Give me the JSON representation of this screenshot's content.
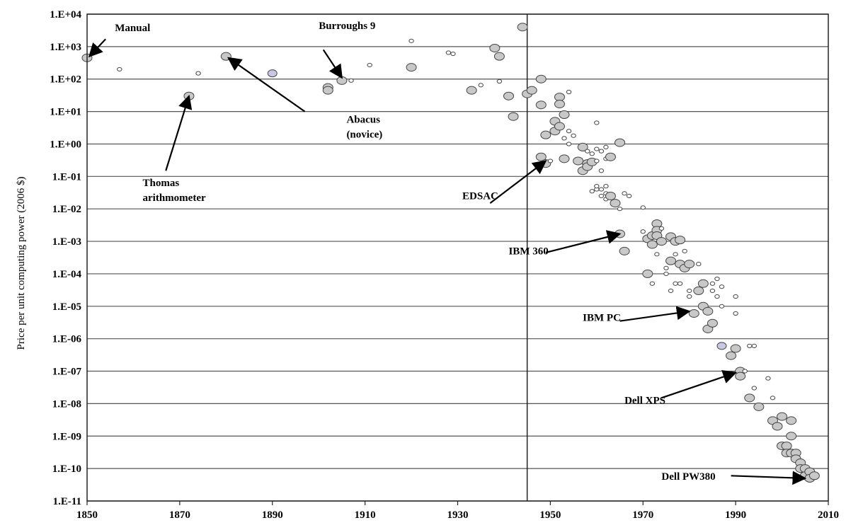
{
  "chart_data": {
    "type": "scatter",
    "title": "",
    "xlabel": "",
    "ylabel": "Price per unit computing power (2006 $)",
    "y_scale": "log",
    "xlim": [
      1850,
      2010
    ],
    "ylim": [
      1e-11,
      10000.0
    ],
    "x_ticks": [
      1850,
      1870,
      1890,
      1910,
      1930,
      1950,
      1970,
      1990,
      2010
    ],
    "y_ticks": [
      {
        "value": 10000.0,
        "label": "1.E+04"
      },
      {
        "value": 1000.0,
        "label": "1.E+03"
      },
      {
        "value": 100.0,
        "label": "1.E+02"
      },
      {
        "value": 10.0,
        "label": "1.E+01"
      },
      {
        "value": 1.0,
        "label": "1.E+00"
      },
      {
        "value": 0.1,
        "label": "1.E-01"
      },
      {
        "value": 0.01,
        "label": "1.E-02"
      },
      {
        "value": 0.001,
        "label": "1.E-03"
      },
      {
        "value": 0.0001,
        "label": "1.E-04"
      },
      {
        "value": 1e-05,
        "label": "1.E-05"
      },
      {
        "value": 1e-06,
        "label": "1.E-06"
      },
      {
        "value": 1e-07,
        "label": "1.E-07"
      },
      {
        "value": 1e-08,
        "label": "1.E-08"
      },
      {
        "value": 1e-09,
        "label": "1.E-09"
      },
      {
        "value": 1e-10,
        "label": "1.E-10"
      },
      {
        "value": 1e-11,
        "label": "1.E-11"
      }
    ],
    "grid": {
      "horizontal": true,
      "vertical": false
    },
    "reference_line_x": 1945,
    "colors": {
      "large_fill": "#c8c8c8",
      "small_fill": "#ffffff",
      "highlight_fill": "#c8c8e6",
      "stroke": "#444444"
    },
    "points": [
      {
        "x": 1850,
        "y": 450,
        "s": "L"
      },
      {
        "x": 1857,
        "y": 200,
        "s": "S"
      },
      {
        "x": 1872,
        "y": 30,
        "s": "L"
      },
      {
        "x": 1874,
        "y": 150,
        "s": "S"
      },
      {
        "x": 1880,
        "y": 500,
        "s": "L"
      },
      {
        "x": 1890,
        "y": 150,
        "s": "H"
      },
      {
        "x": 1902,
        "y": 55,
        "s": "L"
      },
      {
        "x": 1902,
        "y": 45,
        "s": "L"
      },
      {
        "x": 1905,
        "y": 90,
        "s": "L"
      },
      {
        "x": 1907,
        "y": 90,
        "s": "S"
      },
      {
        "x": 1911,
        "y": 270,
        "s": "S"
      },
      {
        "x": 1920,
        "y": 1500,
        "s": "S"
      },
      {
        "x": 1920,
        "y": 230,
        "s": "L"
      },
      {
        "x": 1928,
        "y": 650,
        "s": "S"
      },
      {
        "x": 1929,
        "y": 600,
        "s": "S"
      },
      {
        "x": 1933,
        "y": 45,
        "s": "L"
      },
      {
        "x": 1935,
        "y": 65,
        "s": "S"
      },
      {
        "x": 1938,
        "y": 900,
        "s": "L"
      },
      {
        "x": 1939,
        "y": 500,
        "s": "L"
      },
      {
        "x": 1939,
        "y": 85,
        "s": "S"
      },
      {
        "x": 1941,
        "y": 30,
        "s": "L"
      },
      {
        "x": 1942,
        "y": 7,
        "s": "L"
      },
      {
        "x": 1944,
        "y": 4000,
        "s": "L"
      },
      {
        "x": 1945,
        "y": 35,
        "s": "L"
      },
      {
        "x": 1946,
        "y": 45,
        "s": "L"
      },
      {
        "x": 1948,
        "y": 100,
        "s": "L"
      },
      {
        "x": 1948,
        "y": 16,
        "s": "L"
      },
      {
        "x": 1948,
        "y": 0.4,
        "s": "L"
      },
      {
        "x": 1949,
        "y": 0.25,
        "s": "L"
      },
      {
        "x": 1949,
        "y": 1.9,
        "s": "L"
      },
      {
        "x": 1950,
        "y": 0.3,
        "s": "S"
      },
      {
        "x": 1951,
        "y": 5,
        "s": "L"
      },
      {
        "x": 1951,
        "y": 2.5,
        "s": "L"
      },
      {
        "x": 1952,
        "y": 28,
        "s": "L"
      },
      {
        "x": 1952,
        "y": 17,
        "s": "L"
      },
      {
        "x": 1952,
        "y": 3.5,
        "s": "L"
      },
      {
        "x": 1953,
        "y": 8,
        "s": "L"
      },
      {
        "x": 1953,
        "y": 1.5,
        "s": "S"
      },
      {
        "x": 1953,
        "y": 0.35,
        "s": "L"
      },
      {
        "x": 1954,
        "y": 40,
        "s": "S"
      },
      {
        "x": 1954,
        "y": 2.5,
        "s": "S"
      },
      {
        "x": 1954,
        "y": 1,
        "s": "S"
      },
      {
        "x": 1955,
        "y": 1.8,
        "s": "S"
      },
      {
        "x": 1956,
        "y": 0.3,
        "s": "L"
      },
      {
        "x": 1957,
        "y": 0.8,
        "s": "L"
      },
      {
        "x": 1957,
        "y": 0.15,
        "s": "L"
      },
      {
        "x": 1958,
        "y": 0.6,
        "s": "S"
      },
      {
        "x": 1958,
        "y": 0.25,
        "s": "L"
      },
      {
        "x": 1958,
        "y": 0.2,
        "s": "L"
      },
      {
        "x": 1959,
        "y": 0.5,
        "s": "S"
      },
      {
        "x": 1959,
        "y": 0.28,
        "s": "L"
      },
      {
        "x": 1959,
        "y": 0.035,
        "s": "S"
      },
      {
        "x": 1960,
        "y": 4.5,
        "s": "S"
      },
      {
        "x": 1960,
        "y": 0.7,
        "s": "S"
      },
      {
        "x": 1960,
        "y": 0.3,
        "s": "S"
      },
      {
        "x": 1960,
        "y": 0.04,
        "s": "S"
      },
      {
        "x": 1960,
        "y": 0.05,
        "s": "S"
      },
      {
        "x": 1961,
        "y": 0.6,
        "s": "S"
      },
      {
        "x": 1961,
        "y": 0.15,
        "s": "S"
      },
      {
        "x": 1961,
        "y": 0.04,
        "s": "S"
      },
      {
        "x": 1961,
        "y": 0.025,
        "s": "S"
      },
      {
        "x": 1962,
        "y": 0.8,
        "s": "S"
      },
      {
        "x": 1962,
        "y": 0.35,
        "s": "S"
      },
      {
        "x": 1962,
        "y": 0.05,
        "s": "S"
      },
      {
        "x": 1962,
        "y": 0.03,
        "s": "S"
      },
      {
        "x": 1962,
        "y": 0.02,
        "s": "S"
      },
      {
        "x": 1963,
        "y": 0.4,
        "s": "L"
      },
      {
        "x": 1963,
        "y": 0.025,
        "s": "L"
      },
      {
        "x": 1964,
        "y": 0.015,
        "s": "L"
      },
      {
        "x": 1965,
        "y": 1.1,
        "s": "L"
      },
      {
        "x": 1965,
        "y": 0.0017,
        "s": "L"
      },
      {
        "x": 1965,
        "y": 0.01,
        "s": "S"
      },
      {
        "x": 1966,
        "y": 0.03,
        "s": "S"
      },
      {
        "x": 1966,
        "y": 0.0005,
        "s": "L"
      },
      {
        "x": 1967,
        "y": 0.025,
        "s": "S"
      },
      {
        "x": 1970,
        "y": 0.011,
        "s": "S"
      },
      {
        "x": 1970,
        "y": 0.002,
        "s": "S"
      },
      {
        "x": 1971,
        "y": 0.0012,
        "s": "L"
      },
      {
        "x": 1971,
        "y": 0.0001,
        "s": "L"
      },
      {
        "x": 1972,
        "y": 0.0015,
        "s": "L"
      },
      {
        "x": 1972,
        "y": 0.0008,
        "s": "L"
      },
      {
        "x": 1972,
        "y": 5e-05,
        "s": "S"
      },
      {
        "x": 1973,
        "y": 0.0035,
        "s": "L"
      },
      {
        "x": 1973,
        "y": 0.0022,
        "s": "L"
      },
      {
        "x": 1973,
        "y": 0.0015,
        "s": "L"
      },
      {
        "x": 1973,
        "y": 0.0004,
        "s": "S"
      },
      {
        "x": 1974,
        "y": 0.0025,
        "s": "S"
      },
      {
        "x": 1974,
        "y": 0.001,
        "s": "L"
      },
      {
        "x": 1975,
        "y": 0.00015,
        "s": "S"
      },
      {
        "x": 1975,
        "y": 0.0001,
        "s": "S"
      },
      {
        "x": 1976,
        "y": 0.0014,
        "s": "L"
      },
      {
        "x": 1976,
        "y": 0.00025,
        "s": "L"
      },
      {
        "x": 1976,
        "y": 3e-05,
        "s": "S"
      },
      {
        "x": 1977,
        "y": 0.001,
        "s": "L"
      },
      {
        "x": 1977,
        "y": 0.0004,
        "s": "S"
      },
      {
        "x": 1977,
        "y": 5e-05,
        "s": "S"
      },
      {
        "x": 1978,
        "y": 0.0011,
        "s": "L"
      },
      {
        "x": 1978,
        "y": 0.0002,
        "s": "L"
      },
      {
        "x": 1978,
        "y": 5e-05,
        "s": "S"
      },
      {
        "x": 1979,
        "y": 0.0005,
        "s": "S"
      },
      {
        "x": 1979,
        "y": 0.00015,
        "s": "L"
      },
      {
        "x": 1980,
        "y": 0.0002,
        "s": "L"
      },
      {
        "x": 1980,
        "y": 3e-05,
        "s": "S"
      },
      {
        "x": 1980,
        "y": 2e-05,
        "s": "S"
      },
      {
        "x": 1981,
        "y": 6e-06,
        "s": "L"
      },
      {
        "x": 1982,
        "y": 0.0002,
        "s": "S"
      },
      {
        "x": 1982,
        "y": 3e-05,
        "s": "L"
      },
      {
        "x": 1983,
        "y": 5e-05,
        "s": "L"
      },
      {
        "x": 1983,
        "y": 1e-05,
        "s": "L"
      },
      {
        "x": 1984,
        "y": 7e-06,
        "s": "L"
      },
      {
        "x": 1984,
        "y": 2e-06,
        "s": "L"
      },
      {
        "x": 1985,
        "y": 5e-05,
        "s": "S"
      },
      {
        "x": 1985,
        "y": 3e-05,
        "s": "S"
      },
      {
        "x": 1985,
        "y": 3e-06,
        "s": "L"
      },
      {
        "x": 1986,
        "y": 7e-05,
        "s": "S"
      },
      {
        "x": 1986,
        "y": 2e-05,
        "s": "S"
      },
      {
        "x": 1987,
        "y": 4e-05,
        "s": "S"
      },
      {
        "x": 1987,
        "y": 1e-05,
        "s": "S"
      },
      {
        "x": 1987,
        "y": 6e-07,
        "s": "H"
      },
      {
        "x": 1989,
        "y": 3e-07,
        "s": "L"
      },
      {
        "x": 1990,
        "y": 2e-05,
        "s": "S"
      },
      {
        "x": 1990,
        "y": 6e-06,
        "s": "S"
      },
      {
        "x": 1990,
        "y": 5e-07,
        "s": "L"
      },
      {
        "x": 1991,
        "y": 1e-07,
        "s": "L"
      },
      {
        "x": 1991,
        "y": 7e-08,
        "s": "L"
      },
      {
        "x": 1992,
        "y": 1e-07,
        "s": "S"
      },
      {
        "x": 1993,
        "y": 6e-07,
        "s": "S"
      },
      {
        "x": 1994,
        "y": 6e-07,
        "s": "S"
      },
      {
        "x": 1994,
        "y": 3e-08,
        "s": "S"
      },
      {
        "x": 1993,
        "y": 1.5e-08,
        "s": "L"
      },
      {
        "x": 1995,
        "y": 8e-09,
        "s": "L"
      },
      {
        "x": 1997,
        "y": 6e-08,
        "s": "S"
      },
      {
        "x": 1998,
        "y": 1.5e-08,
        "s": "S"
      },
      {
        "x": 1998,
        "y": 3e-09,
        "s": "L"
      },
      {
        "x": 1999,
        "y": 2e-09,
        "s": "L"
      },
      {
        "x": 2000,
        "y": 4e-09,
        "s": "L"
      },
      {
        "x": 2000,
        "y": 5e-10,
        "s": "L"
      },
      {
        "x": 2001,
        "y": 5e-10,
        "s": "L"
      },
      {
        "x": 2001,
        "y": 3e-10,
        "s": "L"
      },
      {
        "x": 2002,
        "y": 3e-09,
        "s": "L"
      },
      {
        "x": 2002,
        "y": 1e-09,
        "s": "L"
      },
      {
        "x": 2002,
        "y": 3e-10,
        "s": "L"
      },
      {
        "x": 2003,
        "y": 3e-10,
        "s": "L"
      },
      {
        "x": 2003,
        "y": 2e-10,
        "s": "L"
      },
      {
        "x": 2004,
        "y": 1.5e-10,
        "s": "L"
      },
      {
        "x": 2004,
        "y": 1e-10,
        "s": "L"
      },
      {
        "x": 2005,
        "y": 1e-10,
        "s": "L"
      },
      {
        "x": 2005,
        "y": 6e-11,
        "s": "L"
      },
      {
        "x": 2006,
        "y": 8e-11,
        "s": "L"
      },
      {
        "x": 2006,
        "y": 5e-11,
        "s": "L"
      },
      {
        "x": 2007,
        "y": 6e-11,
        "s": "L"
      }
    ],
    "annotations": [
      {
        "lines": [
          "Manual"
        ],
        "text_pos": [
          1856,
          3000
        ],
        "anchor": "start",
        "arrow_from": [
          1854,
          1700
        ],
        "arrow_to": [
          1850.5,
          500
        ]
      },
      {
        "lines": [
          "Burroughs 9"
        ],
        "text_pos": [
          1900,
          3500
        ],
        "anchor": "start",
        "arrow_from": [
          1901,
          800
        ],
        "arrow_to": [
          1905,
          110
        ]
      },
      {
        "lines": [
          "Abacus",
          "(novice)"
        ],
        "text_pos": [
          1906,
          4.5
        ],
        "anchor": "start",
        "arrow_from": [
          1897,
          10
        ],
        "arrow_to": [
          1880.5,
          450
        ]
      },
      {
        "lines": [
          "Thomas",
          "arithmometer"
        ],
        "text_pos": [
          1862,
          0.05
        ],
        "anchor": "start",
        "arrow_from": [
          1867,
          0.15
        ],
        "arrow_to": [
          1872,
          30
        ]
      },
      {
        "lines": [
          "EDSAC"
        ],
        "text_pos": [
          1931,
          0.02
        ],
        "anchor": "start",
        "arrow_from": [
          1937,
          0.015
        ],
        "arrow_to": [
          1949,
          0.3
        ]
      },
      {
        "lines": [
          "IBM 360"
        ],
        "text_pos": [
          1941,
          0.0004
        ],
        "anchor": "start",
        "arrow_from": [
          1949,
          0.00045
        ],
        "arrow_to": [
          1965,
          0.0017
        ]
      },
      {
        "lines": [
          "IBM PC"
        ],
        "text_pos": [
          1957,
          3.5e-06
        ],
        "anchor": "start",
        "arrow_from": [
          1965,
          3.5e-06
        ],
        "arrow_to": [
          1980,
          7e-06
        ]
      },
      {
        "lines": [
          "Dell XPS"
        ],
        "text_pos": [
          1966,
          1e-08
        ],
        "anchor": "start",
        "arrow_from": [
          1974,
          1.5e-08
        ],
        "arrow_to": [
          1990,
          9e-08
        ]
      },
      {
        "lines": [
          "Dell PW380"
        ],
        "text_pos": [
          1974,
          4.5e-11
        ],
        "anchor": "start",
        "arrow_from": [
          1989,
          6e-11
        ],
        "arrow_to": [
          2005,
          5e-11
        ]
      }
    ]
  }
}
